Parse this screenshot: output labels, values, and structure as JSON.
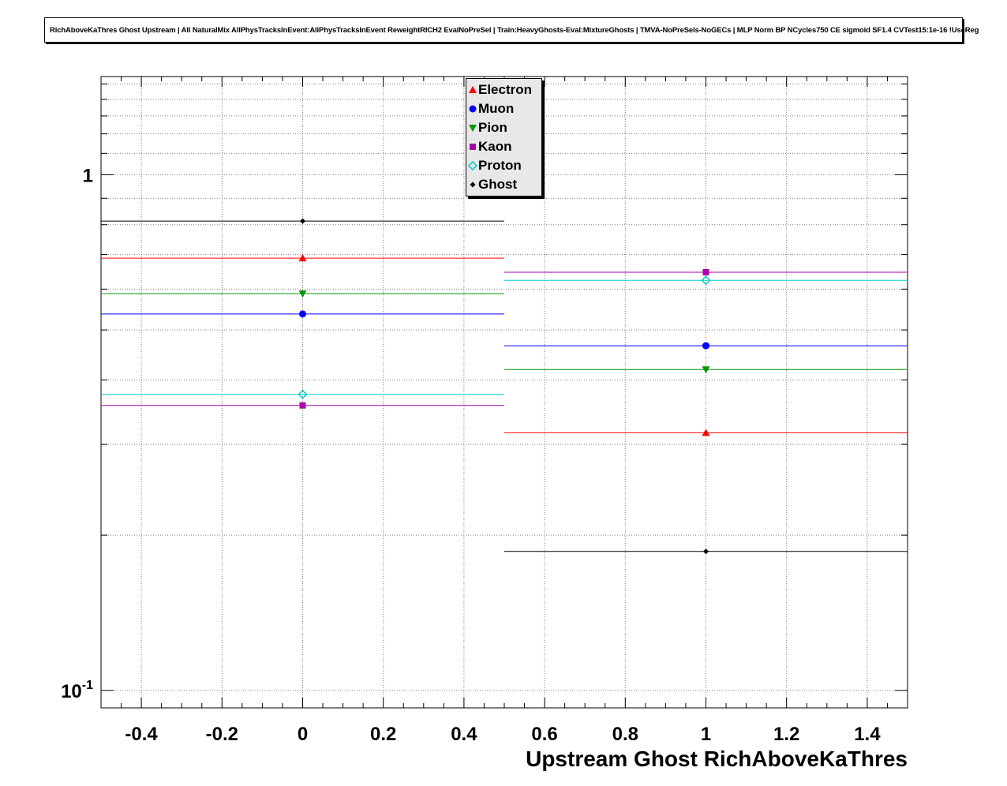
{
  "title_pave": {
    "text": "RichAboveKaThres Ghost Upstream | All NaturalMix AllPhysTracksInEvent:AllPhysTracksInEvent ReweightRICH2 EvalNoPreSel | Train:HeavyGhosts-Eval:MixtureGhosts | TMVA-NoPreSels-NoGECs | MLP Norm BP NCycles750 CE sigmoid SF1.4 CVTest15:1e-16 !UseReg"
  },
  "chart_data": {
    "type": "line",
    "title": "RichAboveKaThres Ghost Upstream",
    "xlabel": "Upstream Ghost RichAboveKaThres",
    "ylabel": "",
    "yscale": "log",
    "grid": true,
    "xlim": [
      -0.5,
      1.5
    ],
    "ylim": [
      0.0925,
      1.55
    ],
    "x_ticks": [
      -0.4,
      -0.2,
      0,
      0.2,
      0.4,
      0.6,
      0.8,
      1,
      1.2,
      1.4
    ],
    "x_tick_labels": [
      "-0.4",
      "-0.2",
      "0",
      "0.2",
      "0.4",
      "0.6",
      "0.8",
      "1",
      "1.2",
      "1.4"
    ],
    "x_minor_step": 0.05,
    "y_ticks": [
      {
        "v": 1,
        "base": "1",
        "exp": ""
      },
      {
        "v": 0.1,
        "base": "10",
        "exp": "-1"
      }
    ],
    "y_grid": [
      0.1,
      0.2,
      0.3,
      0.4,
      0.5,
      0.6,
      0.7,
      0.8,
      0.9,
      1.0,
      1.1,
      1.2,
      1.3,
      1.4,
      1.5
    ],
    "bins": [
      {
        "low": -0.5,
        "high": 0.5,
        "center": 0
      },
      {
        "low": 0.5,
        "high": 1.5,
        "center": 1
      }
    ],
    "series": [
      {
        "name": "Electron",
        "color": "#ff0000",
        "marker": "triangle-up",
        "values": [
          0.689,
          0.316
        ]
      },
      {
        "name": "Muon",
        "color": "#0000ff",
        "marker": "circle",
        "values": [
          0.537,
          0.466
        ]
      },
      {
        "name": "Pion",
        "color": "#009900",
        "marker": "triangle-down",
        "values": [
          0.588,
          0.419
        ]
      },
      {
        "name": "Kaon",
        "color": "#aa00aa",
        "marker": "square",
        "values": [
          0.357,
          0.647
        ]
      },
      {
        "name": "Proton",
        "color": "#00cccc",
        "marker": "diamond-open",
        "values": [
          0.375,
          0.624
        ]
      },
      {
        "name": "Ghost",
        "color": "#000000",
        "marker": "diamond-small",
        "values": [
          0.813,
          0.186
        ]
      }
    ],
    "legend": {
      "position": "top-center",
      "entries": [
        "Electron",
        "Muon",
        "Pion",
        "Kaon",
        "Proton",
        "Ghost"
      ]
    }
  }
}
